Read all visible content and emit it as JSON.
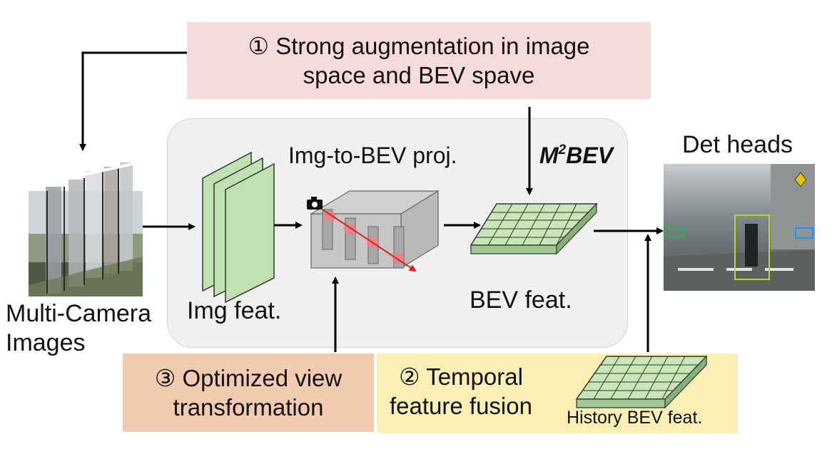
{
  "notes": {
    "aug": {
      "line1": "① Strong augmentation in image",
      "line2": "space and BEV spave"
    },
    "view": {
      "line1": "③ Optimized view",
      "line2": "transformation"
    },
    "temporal": {
      "line1": "② Temporal",
      "line2": "feature fusion"
    }
  },
  "labels": {
    "multi_camera_line1": "Multi-Camera",
    "multi_camera_line2": "Images",
    "img_feat": "Img feat.",
    "proj": "Img-to-BEV proj.",
    "bev_feat": "BEV feat.",
    "m2bev_main": "M",
    "m2bev_sup": "2",
    "m2bev_tail": "BEV",
    "det_heads": "Det heads",
    "history_bev": "History BEV feat."
  },
  "colors": {
    "aug_box": "#f6dbd8",
    "view_box": "#f2cbb0",
    "temporal_box": "#fbefb5",
    "panel": "#f0f0f0",
    "feature_green": "#bfe3b0",
    "grid_green": "#c9e6b9",
    "proj_ray": "#e02020"
  }
}
